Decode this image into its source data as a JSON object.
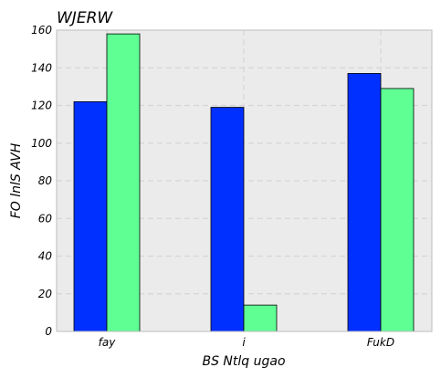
{
  "chart_data": {
    "type": "bar",
    "title": "WJERW",
    "xlabel": "BS  Ntlq  ugao",
    "ylabel": "FO lnlS AVH",
    "categories": [
      "fay",
      "i",
      "FukD"
    ],
    "series": [
      {
        "values": [
          122,
          119,
          137
        ],
        "color": "#0030ff"
      },
      {
        "values": [
          158,
          14,
          129
        ],
        "color": "#5fff93"
      }
    ],
    "ylim": [
      0,
      160
    ],
    "yticks": [
      0,
      20,
      40,
      60,
      80,
      100,
      120,
      140,
      160
    ],
    "grid": true,
    "background": "#ebebeb"
  }
}
